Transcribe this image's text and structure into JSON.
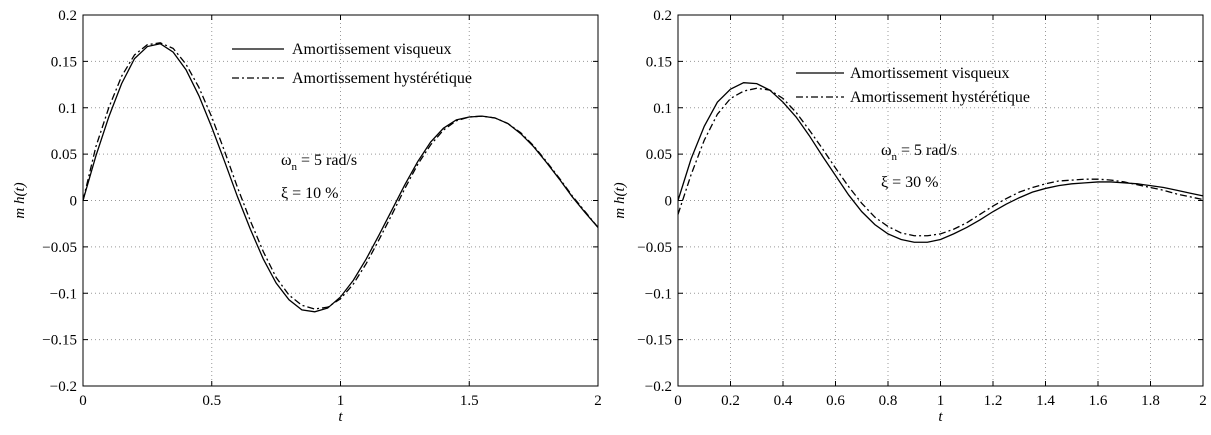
{
  "chart_data": [
    {
      "type": "line",
      "xlabel": "t",
      "ylabel": "m h(t)",
      "xlim": [
        0,
        2
      ],
      "ylim": [
        -0.2,
        0.2
      ],
      "xticks": [
        0,
        0.5,
        1,
        1.5,
        2
      ],
      "xtick_labels": [
        "0",
        "0.5",
        "1",
        "1.5",
        "2"
      ],
      "yticks": [
        -0.2,
        -0.15,
        -0.1,
        -0.05,
        0,
        0.05,
        0.1,
        0.15,
        0.2
      ],
      "ytick_labels": [
        "−0.2",
        "−0.15",
        "−0.1",
        "−0.05",
        "0",
        "0.05",
        "0.1",
        "0.15",
        "0.2"
      ],
      "grid": true,
      "legend_position": "top-right",
      "annotations": {
        "omega_symbol": "ω",
        "omega_subscript": "n",
        "omega_value": " = 5 rad/s",
        "xi_text": "ξ = 10 %"
      },
      "series": [
        {
          "name": "Amortissement visqueux",
          "style": "solid",
          "x": [
            0,
            0.05,
            0.1,
            0.15,
            0.2,
            0.25,
            0.3,
            0.35,
            0.4,
            0.45,
            0.5,
            0.55,
            0.6,
            0.65,
            0.7,
            0.75,
            0.8,
            0.85,
            0.9,
            0.95,
            1.0,
            1.05,
            1.1,
            1.15,
            1.2,
            1.25,
            1.3,
            1.35,
            1.4,
            1.45,
            1.5,
            1.55,
            1.6,
            1.65,
            1.7,
            1.75,
            1.8,
            1.85,
            1.9,
            1.95,
            2.0
          ],
          "y": [
            0,
            0.048,
            0.09,
            0.126,
            0.153,
            0.166,
            0.169,
            0.16,
            0.141,
            0.113,
            0.079,
            0.042,
            0.004,
            -0.031,
            -0.063,
            -0.089,
            -0.107,
            -0.118,
            -0.12,
            -0.116,
            -0.104,
            -0.086,
            -0.063,
            -0.037,
            -0.01,
            0.017,
            0.042,
            0.063,
            0.078,
            0.087,
            0.09,
            0.091,
            0.089,
            0.083,
            0.072,
            0.058,
            0.041,
            0.023,
            0.004,
            -0.013,
            -0.029
          ]
        },
        {
          "name": "Amortissement hystérétique",
          "style": "dashdot",
          "x": [
            0,
            0.05,
            0.1,
            0.15,
            0.2,
            0.25,
            0.3,
            0.35,
            0.4,
            0.45,
            0.5,
            0.55,
            0.6,
            0.65,
            0.7,
            0.75,
            0.8,
            0.85,
            0.9,
            0.95,
            1.0,
            1.05,
            1.1,
            1.15,
            1.2,
            1.25,
            1.3,
            1.35,
            1.4,
            1.45,
            1.5,
            1.55,
            1.6,
            1.65,
            1.7,
            1.75,
            1.8,
            1.85,
            1.9,
            1.95,
            2.0
          ],
          "y": [
            0,
            0.058,
            0.1,
            0.134,
            0.157,
            0.168,
            0.17,
            0.164,
            0.147,
            0.122,
            0.09,
            0.053,
            0.014,
            -0.022,
            -0.055,
            -0.083,
            -0.102,
            -0.113,
            -0.117,
            -0.115,
            -0.106,
            -0.09,
            -0.068,
            -0.042,
            -0.015,
            0.013,
            0.039,
            0.06,
            0.076,
            0.086,
            0.09,
            0.091,
            0.089,
            0.083,
            0.073,
            0.059,
            0.042,
            0.024,
            0.005,
            -0.012,
            -0.029
          ]
        }
      ]
    },
    {
      "type": "line",
      "xlabel": "t",
      "ylabel": "m h(t)",
      "xlim": [
        0,
        2
      ],
      "ylim": [
        -0.2,
        0.2
      ],
      "xticks": [
        0,
        0.2,
        0.4,
        0.6,
        0.8,
        1,
        1.2,
        1.4,
        1.6,
        1.8,
        2
      ],
      "xtick_labels": [
        "0",
        "0.2",
        "0.4",
        "0.6",
        "0.8",
        "1",
        "1.2",
        "1.4",
        "1.6",
        "1.8",
        "2"
      ],
      "yticks": [
        -0.2,
        -0.15,
        -0.1,
        -0.05,
        0,
        0.05,
        0.1,
        0.15,
        0.2
      ],
      "ytick_labels": [
        "−0.2",
        "−0.15",
        "−0.1",
        "−0.05",
        "0",
        "0.05",
        "0.1",
        "0.15",
        "0.2"
      ],
      "grid": true,
      "legend_position": "top-right",
      "annotations": {
        "omega_symbol": "ω",
        "omega_subscript": "n",
        "omega_value": " = 5 rad/s",
        "xi_text": "ξ = 30 %"
      },
      "series": [
        {
          "name": "Amortissement visqueux",
          "style": "solid",
          "x": [
            0,
            0.05,
            0.1,
            0.15,
            0.2,
            0.25,
            0.3,
            0.35,
            0.4,
            0.45,
            0.5,
            0.55,
            0.6,
            0.65,
            0.7,
            0.75,
            0.8,
            0.85,
            0.9,
            0.95,
            1.0,
            1.05,
            1.1,
            1.15,
            1.2,
            1.25,
            1.3,
            1.35,
            1.4,
            1.45,
            1.5,
            1.55,
            1.6,
            1.65,
            1.7,
            1.75,
            1.8,
            1.85,
            1.9,
            1.95,
            2.0
          ],
          "y": [
            0,
            0.045,
            0.08,
            0.106,
            0.12,
            0.127,
            0.126,
            0.119,
            0.106,
            0.09,
            0.07,
            0.048,
            0.027,
            0.006,
            -0.012,
            -0.026,
            -0.036,
            -0.042,
            -0.045,
            -0.045,
            -0.042,
            -0.036,
            -0.029,
            -0.021,
            -0.012,
            -0.004,
            0.003,
            0.009,
            0.013,
            0.016,
            0.018,
            0.019,
            0.02,
            0.02,
            0.019,
            0.018,
            0.016,
            0.014,
            0.011,
            0.008,
            0.005
          ]
        },
        {
          "name": "Amortissement hystérétique",
          "style": "dashdot",
          "x": [
            0,
            0.05,
            0.1,
            0.15,
            0.2,
            0.25,
            0.3,
            0.35,
            0.4,
            0.45,
            0.5,
            0.55,
            0.6,
            0.65,
            0.7,
            0.75,
            0.8,
            0.85,
            0.9,
            0.95,
            1.0,
            1.05,
            1.1,
            1.15,
            1.2,
            1.25,
            1.3,
            1.35,
            1.4,
            1.45,
            1.5,
            1.55,
            1.6,
            1.65,
            1.7,
            1.75,
            1.8,
            1.85,
            1.9,
            1.95,
            2.0
          ],
          "y": [
            -0.015,
            0.028,
            0.065,
            0.093,
            0.11,
            0.118,
            0.121,
            0.119,
            0.11,
            0.095,
            0.076,
            0.056,
            0.035,
            0.015,
            -0.003,
            -0.018,
            -0.028,
            -0.035,
            -0.038,
            -0.038,
            -0.036,
            -0.031,
            -0.024,
            -0.015,
            -0.006,
            0.002,
            0.009,
            0.014,
            0.018,
            0.021,
            0.022,
            0.023,
            0.023,
            0.022,
            0.02,
            0.017,
            0.014,
            0.011,
            0.007,
            0.004,
            0.001
          ]
        }
      ]
    }
  ]
}
